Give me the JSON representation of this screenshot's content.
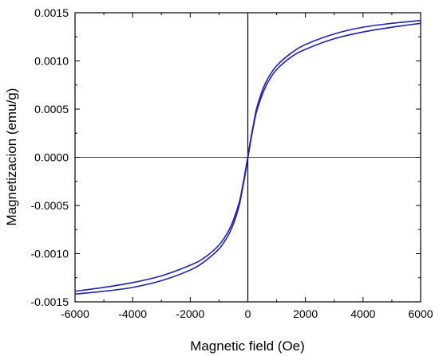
{
  "chart_data": {
    "type": "line",
    "title": "",
    "xlabel": "Magnetic field (Oe)",
    "ylabel": "Magnetizacion (emu/g)",
    "xlim": [
      -6000,
      6000
    ],
    "ylim": [
      -0.0015,
      0.0015
    ],
    "xticks": [
      -6000,
      -4000,
      -2000,
      0,
      2000,
      4000,
      6000
    ],
    "xtick_labels": [
      "-6000",
      "-4000",
      "-2000",
      "0",
      "2000",
      "4000",
      "6000"
    ],
    "yticks": [
      -0.0015,
      -0.001,
      -0.0005,
      0.0,
      0.0005,
      0.001,
      0.0015
    ],
    "ytick_labels": [
      "-0.0015",
      "-0.0010",
      "-0.0005",
      "0.0000",
      "0.0005",
      "0.0010",
      "0.0015"
    ],
    "grid": false,
    "reference_lines": {
      "x": 0,
      "y": 0
    },
    "line_color": "#1f1fb4",
    "series": [
      {
        "x": [
          -6000,
          -5000,
          -4000,
          -3000,
          -2000,
          -1500,
          -1000,
          -700,
          -500,
          -300,
          -200,
          -100,
          0,
          100,
          200,
          300,
          500,
          700,
          1000,
          1500,
          2000,
          3000,
          4000,
          5000,
          6000
        ],
        "y": [
          -0.00139,
          -0.00135,
          -0.0013,
          -0.00123,
          -0.00112,
          -0.00104,
          -0.00091,
          -0.00078,
          -0.00065,
          -0.00047,
          -0.00033,
          -0.00017,
          1e-05,
          0.00019,
          0.00035,
          0.0005,
          0.00069,
          0.00082,
          0.00095,
          0.00108,
          0.00117,
          0.00128,
          0.00135,
          0.00139,
          0.00142
        ]
      },
      {
        "x": [
          6000,
          5000,
          4000,
          3000,
          2000,
          1500,
          1000,
          700,
          500,
          300,
          200,
          100,
          0,
          -100,
          -200,
          -300,
          -500,
          -700,
          -1000,
          -1500,
          -2000,
          -3000,
          -4000,
          -5000,
          -6000
        ],
        "y": [
          0.00139,
          0.00135,
          0.0013,
          0.00123,
          0.00112,
          0.00104,
          0.00091,
          0.00078,
          0.00065,
          0.00047,
          0.00033,
          0.00017,
          -1e-05,
          -0.00019,
          -0.00035,
          -0.0005,
          -0.00069,
          -0.00082,
          -0.00095,
          -0.00108,
          -0.00117,
          -0.00128,
          -0.00135,
          -0.00139,
          -0.00142
        ]
      }
    ]
  }
}
